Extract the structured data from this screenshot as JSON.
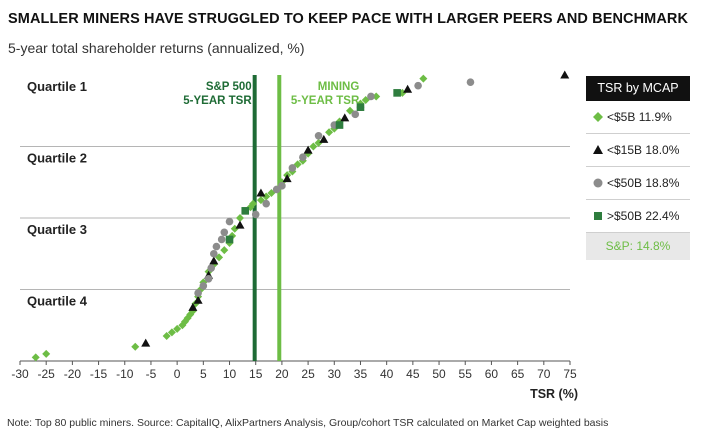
{
  "header": {
    "title": "SMALLER MINERS HAVE STRUGGLED TO KEEP PACE WITH LARGER PEERS AND BENCHMARK",
    "subtitle": "5-year total shareholder returns (annualized, %)"
  },
  "note": "Note: Top 80 public miners. Source: CapitalIQ, AlixPartners Analysis, Group/cohort TSR calculated on Market Cap weighted basis",
  "legend": {
    "title": "TSR by MCAP",
    "items": [
      {
        "marker": "diamond",
        "color": "#6dbd45",
        "label": "<$5B 11.9%"
      },
      {
        "marker": "triangle",
        "color": "#111111",
        "label": "<$15B 18.0%"
      },
      {
        "marker": "circle",
        "color": "#8c8c8c",
        "label": "<$50B 18.8%"
      },
      {
        "marker": "square",
        "color": "#2e7d3e",
        "label": ">$50B 22.4%"
      }
    ],
    "sp_label": "S&P: 14.8%"
  },
  "chart_data": {
    "type": "scatter",
    "title": "SMALLER MINERS HAVE STRUGGLED TO KEEP PACE WITH LARGER PEERS AND BENCHMARK",
    "xlabel": "TSR (%)",
    "ylabel": "",
    "xlim": [
      -30,
      75
    ],
    "xticks": [
      -30,
      -25,
      -20,
      -15,
      -10,
      -5,
      0,
      5,
      10,
      15,
      20,
      25,
      30,
      35,
      40,
      45,
      50,
      55,
      60,
      65,
      70,
      75
    ],
    "ylim": [
      0,
      80
    ],
    "quartiles": [
      {
        "label": "Quartile 1",
        "range": [
          60,
          80
        ]
      },
      {
        "label": "Quartile 2",
        "range": [
          40,
          60
        ]
      },
      {
        "label": "Quartile 3",
        "range": [
          20,
          40
        ]
      },
      {
        "label": "Quartile 4",
        "range": [
          0,
          20
        ]
      }
    ],
    "reference_lines": [
      {
        "label_line1": "S&P 500",
        "label_line2": "5-YEAR TSR",
        "x": 14.8,
        "color": "#1e6b35"
      },
      {
        "label_line1": "MINING",
        "label_line2": "5-YEAR TSR",
        "x": 19.5,
        "color": "#6dbd45"
      }
    ],
    "series": [
      {
        "name": "<$5B 11.9%",
        "marker": "diamond",
        "color": "#6dbd45",
        "points": [
          [
            -27,
            1
          ],
          [
            -25,
            2
          ],
          [
            -8,
            4
          ],
          [
            -2,
            7
          ],
          [
            -1,
            8
          ],
          [
            0,
            9
          ],
          [
            1,
            10
          ],
          [
            1.5,
            11
          ],
          [
            2,
            12
          ],
          [
            2.5,
            13
          ],
          [
            3,
            14
          ],
          [
            3.5,
            16
          ],
          [
            4,
            18
          ],
          [
            4.5,
            20
          ],
          [
            5,
            22
          ],
          [
            6,
            25
          ],
          [
            7,
            27
          ],
          [
            8,
            29
          ],
          [
            9,
            31
          ],
          [
            10,
            33
          ],
          [
            10.5,
            35
          ],
          [
            11,
            37
          ],
          [
            12,
            40
          ],
          [
            14,
            43
          ],
          [
            14.5,
            44
          ],
          [
            16,
            45
          ],
          [
            17,
            46
          ],
          [
            18,
            47
          ],
          [
            20,
            50
          ],
          [
            21,
            52
          ],
          [
            22,
            53
          ],
          [
            23,
            55
          ],
          [
            24,
            56
          ],
          [
            25,
            58
          ],
          [
            26,
            60
          ],
          [
            27,
            61
          ],
          [
            29,
            64
          ],
          [
            30,
            65
          ],
          [
            31,
            67
          ],
          [
            33,
            70
          ],
          [
            35,
            72
          ],
          [
            36,
            73
          ],
          [
            38,
            74
          ],
          [
            43,
            75
          ],
          [
            47,
            79
          ]
        ]
      },
      {
        "name": "<$15B 18.0%",
        "marker": "triangle",
        "color": "#111111",
        "points": [
          [
            -6,
            5
          ],
          [
            3,
            15
          ],
          [
            4,
            17
          ],
          [
            6,
            24
          ],
          [
            7,
            28
          ],
          [
            12,
            38
          ],
          [
            16,
            47
          ],
          [
            21,
            51
          ],
          [
            25,
            59
          ],
          [
            28,
            62
          ],
          [
            32,
            68
          ],
          [
            44,
            76
          ],
          [
            74,
            80
          ]
        ]
      },
      {
        "name": "<$50B 18.8%",
        "marker": "circle",
        "color": "#8c8c8c",
        "points": [
          [
            4,
            19
          ],
          [
            5,
            21
          ],
          [
            6,
            23
          ],
          [
            6.5,
            26
          ],
          [
            7,
            30
          ],
          [
            7.5,
            32
          ],
          [
            8.5,
            34
          ],
          [
            9,
            36
          ],
          [
            10,
            39
          ],
          [
            15,
            41
          ],
          [
            17,
            44
          ],
          [
            19,
            48
          ],
          [
            20,
            49
          ],
          [
            22,
            54
          ],
          [
            24,
            57
          ],
          [
            27,
            63
          ],
          [
            30,
            66
          ],
          [
            34,
            69
          ],
          [
            35,
            71
          ],
          [
            37,
            74
          ],
          [
            46,
            77
          ],
          [
            56,
            78
          ]
        ]
      },
      {
        "name": ">$50B 22.4%",
        "marker": "square",
        "color": "#2e7d3e",
        "points": [
          [
            10,
            34
          ],
          [
            13,
            42
          ],
          [
            31,
            66
          ],
          [
            35,
            71
          ],
          [
            42,
            75
          ]
        ]
      }
    ]
  }
}
